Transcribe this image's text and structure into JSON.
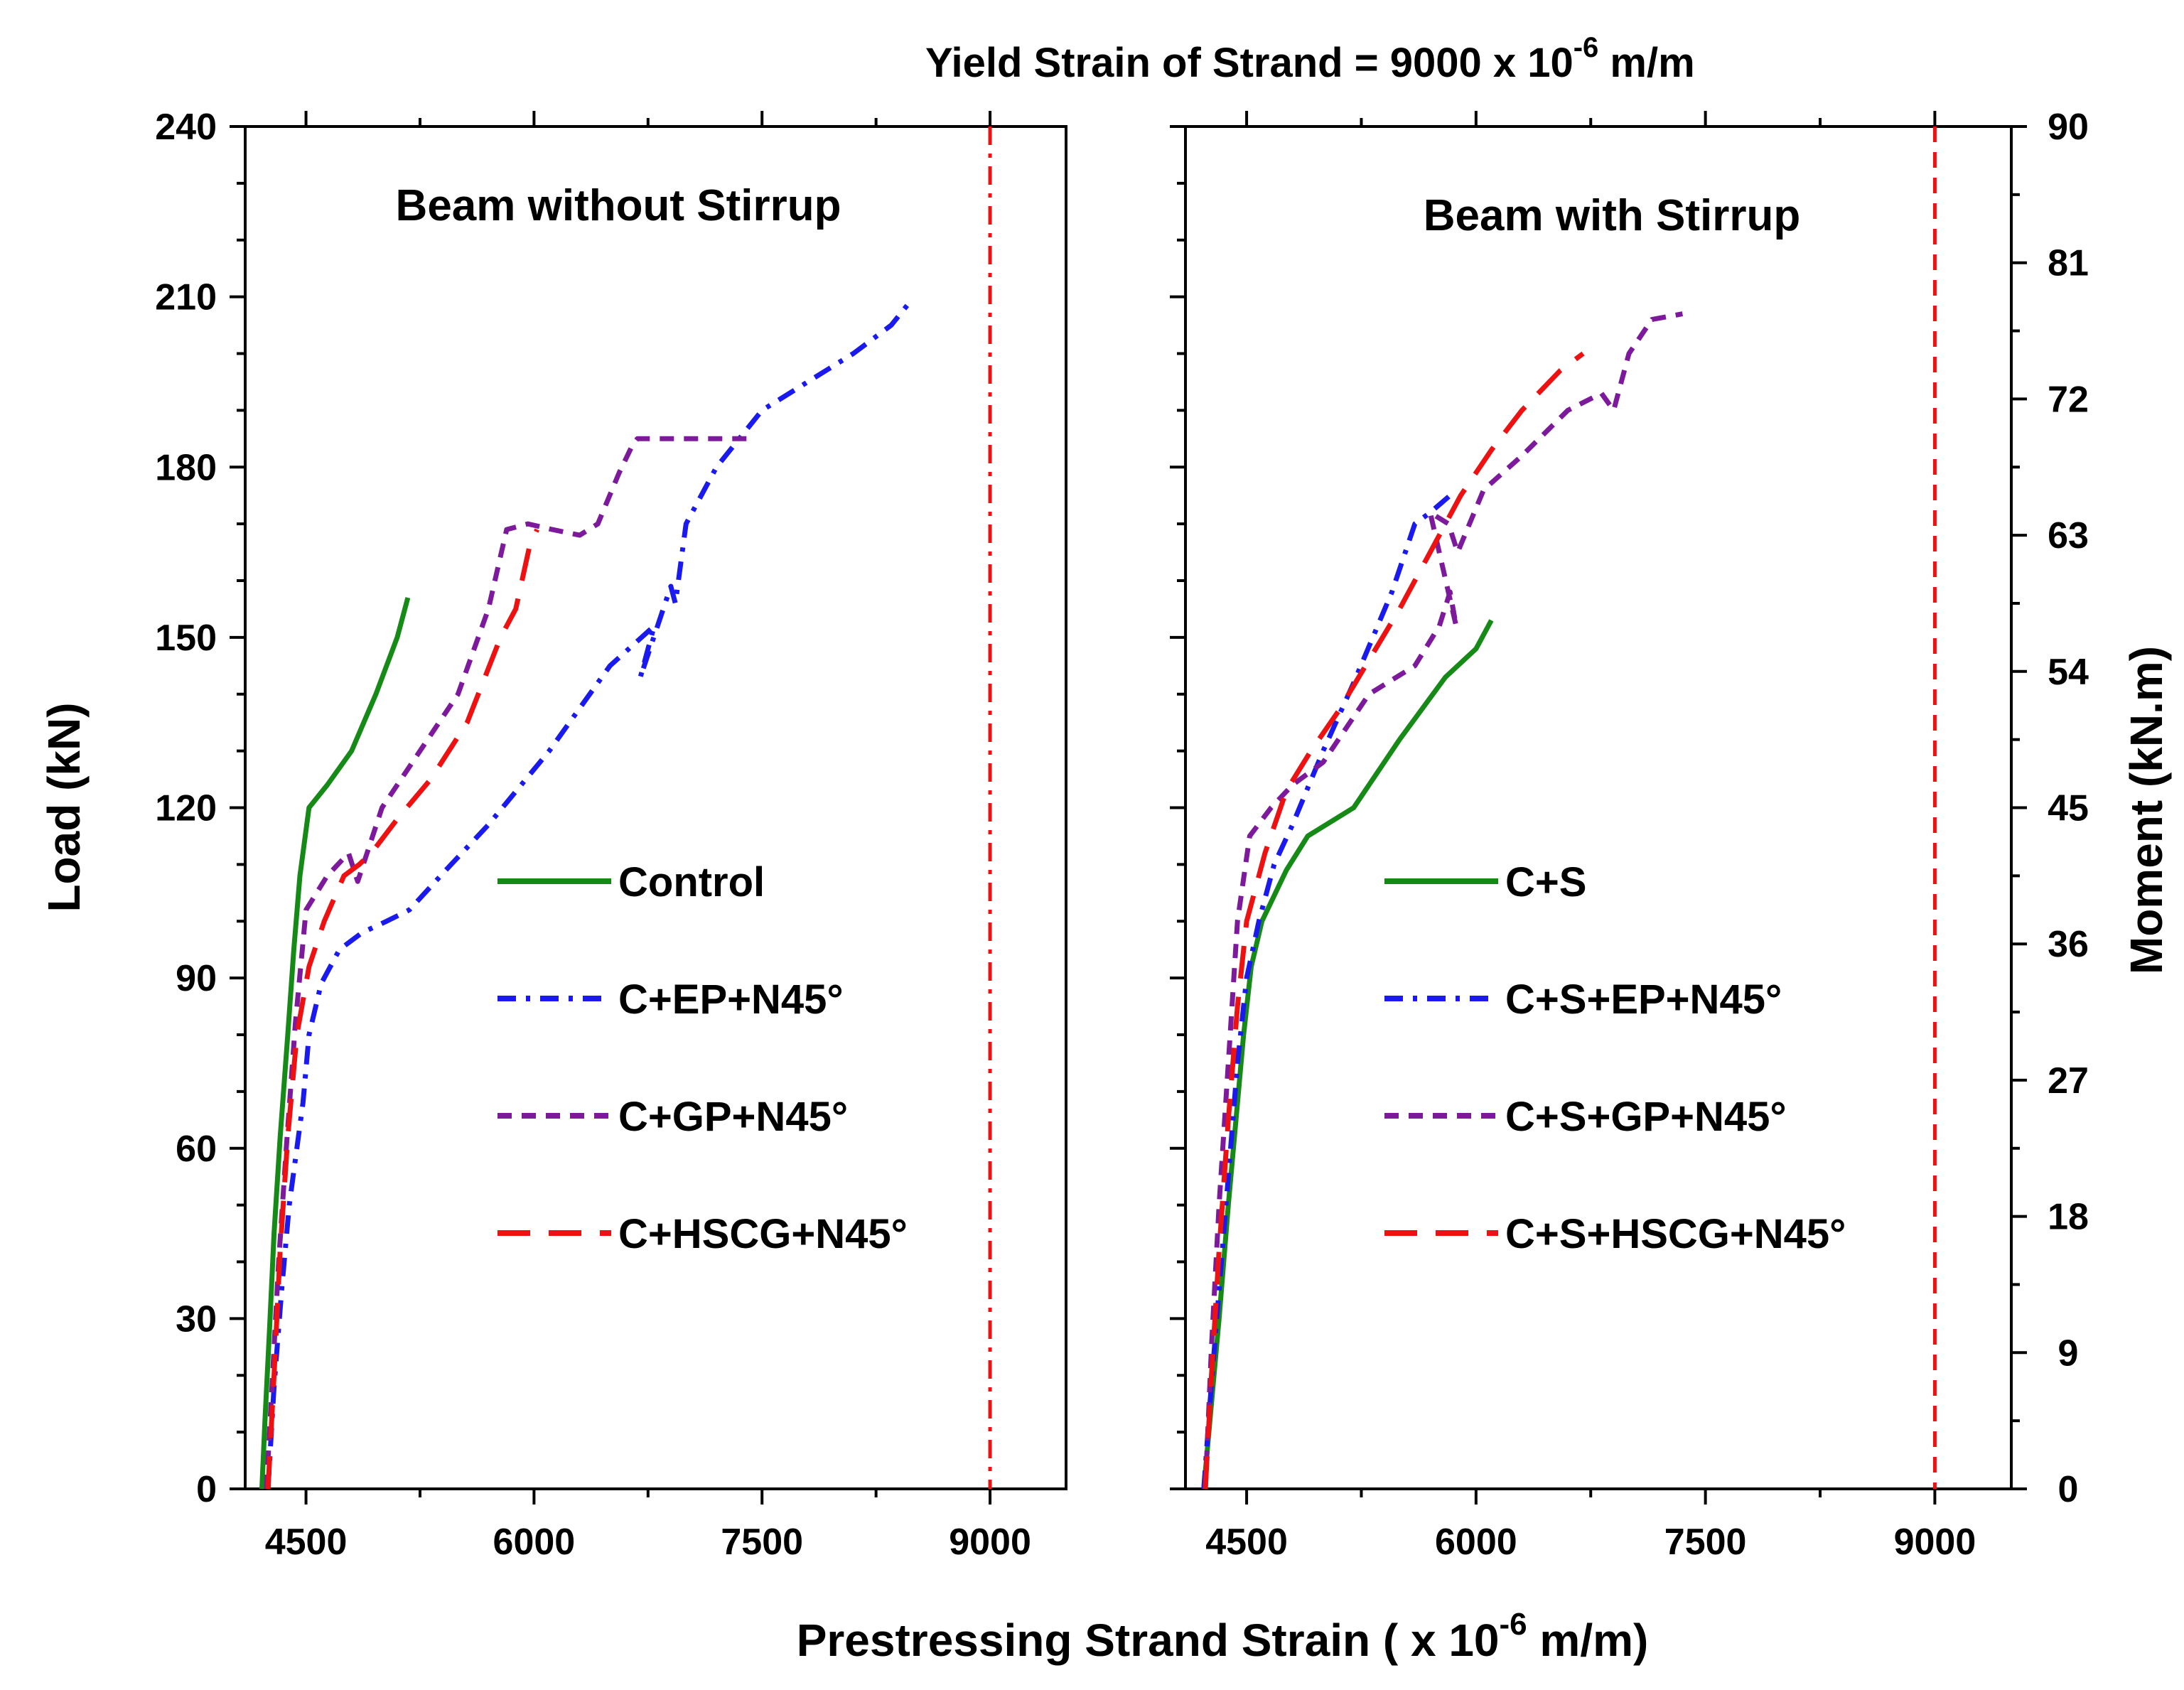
{
  "chart_data": {
    "type": "line",
    "figure_title": {
      "prefix": "Yield Strain of Strand = 9000 x 10",
      "exponent": "-6",
      "suffix": " m/m"
    },
    "xlabel": {
      "prefix": "Prestressing Strand Strain ( x 10",
      "exponent": "-6",
      "suffix": " m/m)"
    },
    "ylabel_left": "Load (kN)",
    "ylabel_right": "Moment (kN.m)",
    "xlim": [
      4100,
      9500
    ],
    "ylim": [
      0,
      240
    ],
    "moment_ylim": [
      0,
      90
    ],
    "x_ticks": [
      4500,
      6000,
      7500,
      9000
    ],
    "x_tick_labels": [
      "4500",
      "6000",
      "7500",
      "9000"
    ],
    "y_ticks": [
      0,
      30,
      60,
      90,
      120,
      150,
      180,
      210,
      240
    ],
    "y_tick_labels": [
      "0",
      "30",
      "60",
      "90",
      "120",
      "150",
      "180",
      "210",
      "240"
    ],
    "moment_ticks": [
      0,
      9,
      18,
      27,
      36,
      45,
      54,
      63,
      72,
      81,
      90
    ],
    "moment_tick_labels": [
      "0",
      "9",
      "18",
      "27",
      "36",
      "45",
      "54",
      "63",
      "72",
      "81",
      "90"
    ],
    "yield_strain": 9000,
    "panels": [
      {
        "title": "Beam without Stirrup",
        "series": [
          {
            "name": "Control",
            "color": "#168a16",
            "dash": "solid",
            "x": [
              4210,
              4230,
              4260,
              4290,
              4330,
              4380,
              4420,
              4460,
              4520,
              4640,
              4800,
              4960,
              5100,
              5170
            ],
            "y": [
              0,
              12,
              28,
              45,
              62,
              80,
              95,
              108,
              120,
              124,
              130,
              140,
              150,
              157
            ]
          },
          {
            "name": "C+EP+N45°",
            "color": "#1a1aee",
            "dash": "dashdot",
            "x": [
              4250,
              4290,
              4340,
              4390,
              4440,
              4480,
              4520,
              4600,
              4720,
              4870,
              5030,
              5180,
              5420,
              5700,
              6100,
              6500,
              6790,
              6700,
              6900,
              6930,
              7000,
              7200,
              7500,
              7800,
              8100,
              8350,
              8470
            ],
            "y": [
              0,
              18,
              35,
              50,
              60,
              68,
              80,
              89,
              95,
              98,
              100,
              102,
              109,
              117,
              130,
              145,
              152,
              143,
              159,
              156,
              170,
              180,
              190,
              195,
              200,
              205,
              209
            ]
          },
          {
            "name": "C+GP+N45°",
            "color": "#7d1a9c",
            "dash": "dash",
            "x": [
              4240,
              4280,
              4320,
              4370,
              4430,
              4500,
              4640,
              4780,
              4840,
              5000,
              5250,
              5500,
              5700,
              5820,
              5960,
              6120,
              6300,
              6420,
              6560,
              6650,
              6680,
              7300,
              7420
            ],
            "y": [
              0,
              20,
              40,
              60,
              82,
              102,
              108,
              112,
              107,
              120,
              130,
              140,
              155,
              169,
              170,
              169,
              168,
              170,
              179,
              184,
              185,
              185,
              185
            ]
          },
          {
            "name": "C+HSCG+N45°",
            "color": "#ee1111",
            "dash": "longdash",
            "x": [
              4250,
              4290,
              4330,
              4380,
              4440,
              4520,
              4620,
              4750,
              4850,
              4930,
              5100,
              5320,
              5560,
              5780,
              5880,
              5970,
              6020
            ],
            "y": [
              0,
              20,
              42,
              62,
              80,
              92,
              100,
              108,
              110,
              112,
              118,
              125,
              135,
              150,
              155,
              166,
              169
            ]
          }
        ],
        "legend": [
          "Control",
          "C+EP+N45°",
          "C+GP+N45°",
          "C+HSCG+N45°"
        ]
      },
      {
        "title": "Beam with Stirrup",
        "series": [
          {
            "name": "C+S",
            "color": "#168a16",
            "dash": "solid",
            "x": [
              4220,
              4260,
              4320,
              4380,
              4440,
              4480,
              4530,
              4600,
              4760,
              4900,
              5200,
              5500,
              5800,
              6000,
              6100
            ],
            "y": [
              0,
              12,
              30,
              50,
              68,
              80,
              92,
              100,
              109,
              115,
              120,
              132,
              143,
              148,
              153
            ]
          },
          {
            "name": "C+S+EP+N45°",
            "color": "#1a1aee",
            "dash": "dashdot",
            "x": [
              4220,
              4260,
              4320,
              4380,
              4440,
              4500,
              4580,
              4680,
              4800,
              5000,
              5200,
              5450,
              5600,
              5700,
              5830
            ],
            "y": [
              0,
              15,
              35,
              55,
              75,
              90,
              100,
              110,
              117,
              130,
              142,
              158,
              170,
              172,
              175
            ]
          },
          {
            "name": "C+S+GP+N45°",
            "color": "#7d1a9c",
            "dash": "dash",
            "x": [
              4230,
              4270,
              4320,
              4380,
              4440,
              4520,
              4660,
              4800,
              5000,
              5300,
              5600,
              5760,
              5830,
              5870,
              5700,
              5820,
              5880,
              6050,
              6300,
              6600,
              6820,
              6900,
              7000,
              7150,
              7350
            ],
            "y": [
              0,
              25,
              50,
              75,
              100,
              115,
              120,
              124,
              128,
              140,
              145,
              152,
              158,
              152,
              172,
              170,
              165,
              176,
              182,
              190,
              193,
              190,
              200,
              206,
              207
            ]
          },
          {
            "name": "C+S+HSCG+N45°",
            "color": "#ee1111",
            "dash": "longdash",
            "x": [
              4230,
              4270,
              4320,
              4380,
              4440,
              4500,
              4620,
              4760,
              4920,
              5100,
              5300,
              5500,
              5700,
              5900,
              6100,
              6300,
              6550,
              6700
            ],
            "y": [
              0,
              20,
              42,
              65,
              85,
              100,
              112,
              123,
              130,
              137,
              146,
              155,
              165,
              175,
              183,
              190,
              197,
              200
            ]
          }
        ],
        "legend": [
          "C+S",
          "C+S+EP+N45°",
          "C+S+GP+N45°",
          "C+S+HSCG+N45°"
        ]
      }
    ]
  }
}
